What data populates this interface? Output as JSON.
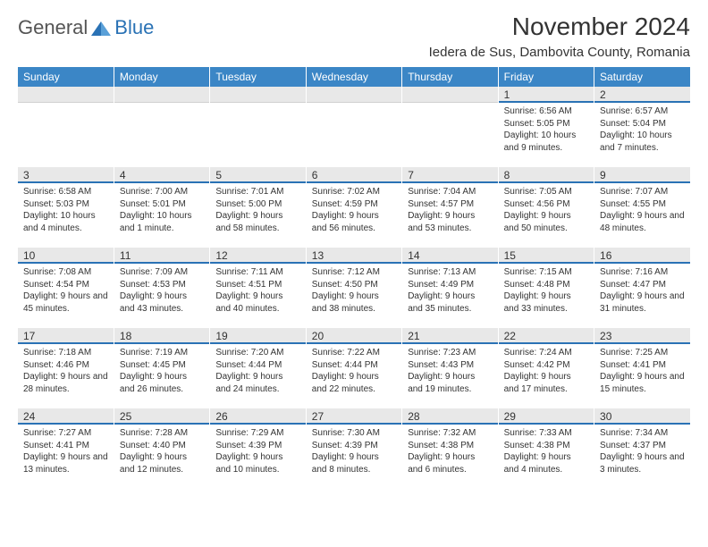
{
  "logo": {
    "general": "General",
    "blue": "Blue"
  },
  "title": "November 2024",
  "location": "Iedera de Sus, Dambovita County, Romania",
  "colors": {
    "header_bg": "#3b86c6",
    "header_text": "#ffffff",
    "num_bg": "#e8e8e8",
    "accent_line": "#2a72b5",
    "body_text": "#333333",
    "page_bg": "#ffffff"
  },
  "typography": {
    "title_fontsize": 28,
    "location_fontsize": 15,
    "weekday_fontsize": 12,
    "daynum_fontsize": 12,
    "cell_fontsize": 10
  },
  "weekdays": [
    "Sunday",
    "Monday",
    "Tuesday",
    "Wednesday",
    "Thursday",
    "Friday",
    "Saturday"
  ],
  "weeks": [
    [
      null,
      null,
      null,
      null,
      null,
      {
        "n": "1",
        "sunrise": "Sunrise: 6:56 AM",
        "sunset": "Sunset: 5:05 PM",
        "daylight": "Daylight: 10 hours and 9 minutes."
      },
      {
        "n": "2",
        "sunrise": "Sunrise: 6:57 AM",
        "sunset": "Sunset: 5:04 PM",
        "daylight": "Daylight: 10 hours and 7 minutes."
      }
    ],
    [
      {
        "n": "3",
        "sunrise": "Sunrise: 6:58 AM",
        "sunset": "Sunset: 5:03 PM",
        "daylight": "Daylight: 10 hours and 4 minutes."
      },
      {
        "n": "4",
        "sunrise": "Sunrise: 7:00 AM",
        "sunset": "Sunset: 5:01 PM",
        "daylight": "Daylight: 10 hours and 1 minute."
      },
      {
        "n": "5",
        "sunrise": "Sunrise: 7:01 AM",
        "sunset": "Sunset: 5:00 PM",
        "daylight": "Daylight: 9 hours and 58 minutes."
      },
      {
        "n": "6",
        "sunrise": "Sunrise: 7:02 AM",
        "sunset": "Sunset: 4:59 PM",
        "daylight": "Daylight: 9 hours and 56 minutes."
      },
      {
        "n": "7",
        "sunrise": "Sunrise: 7:04 AM",
        "sunset": "Sunset: 4:57 PM",
        "daylight": "Daylight: 9 hours and 53 minutes."
      },
      {
        "n": "8",
        "sunrise": "Sunrise: 7:05 AM",
        "sunset": "Sunset: 4:56 PM",
        "daylight": "Daylight: 9 hours and 50 minutes."
      },
      {
        "n": "9",
        "sunrise": "Sunrise: 7:07 AM",
        "sunset": "Sunset: 4:55 PM",
        "daylight": "Daylight: 9 hours and 48 minutes."
      }
    ],
    [
      {
        "n": "10",
        "sunrise": "Sunrise: 7:08 AM",
        "sunset": "Sunset: 4:54 PM",
        "daylight": "Daylight: 9 hours and 45 minutes."
      },
      {
        "n": "11",
        "sunrise": "Sunrise: 7:09 AM",
        "sunset": "Sunset: 4:53 PM",
        "daylight": "Daylight: 9 hours and 43 minutes."
      },
      {
        "n": "12",
        "sunrise": "Sunrise: 7:11 AM",
        "sunset": "Sunset: 4:51 PM",
        "daylight": "Daylight: 9 hours and 40 minutes."
      },
      {
        "n": "13",
        "sunrise": "Sunrise: 7:12 AM",
        "sunset": "Sunset: 4:50 PM",
        "daylight": "Daylight: 9 hours and 38 minutes."
      },
      {
        "n": "14",
        "sunrise": "Sunrise: 7:13 AM",
        "sunset": "Sunset: 4:49 PM",
        "daylight": "Daylight: 9 hours and 35 minutes."
      },
      {
        "n": "15",
        "sunrise": "Sunrise: 7:15 AM",
        "sunset": "Sunset: 4:48 PM",
        "daylight": "Daylight: 9 hours and 33 minutes."
      },
      {
        "n": "16",
        "sunrise": "Sunrise: 7:16 AM",
        "sunset": "Sunset: 4:47 PM",
        "daylight": "Daylight: 9 hours and 31 minutes."
      }
    ],
    [
      {
        "n": "17",
        "sunrise": "Sunrise: 7:18 AM",
        "sunset": "Sunset: 4:46 PM",
        "daylight": "Daylight: 9 hours and 28 minutes."
      },
      {
        "n": "18",
        "sunrise": "Sunrise: 7:19 AM",
        "sunset": "Sunset: 4:45 PM",
        "daylight": "Daylight: 9 hours and 26 minutes."
      },
      {
        "n": "19",
        "sunrise": "Sunrise: 7:20 AM",
        "sunset": "Sunset: 4:44 PM",
        "daylight": "Daylight: 9 hours and 24 minutes."
      },
      {
        "n": "20",
        "sunrise": "Sunrise: 7:22 AM",
        "sunset": "Sunset: 4:44 PM",
        "daylight": "Daylight: 9 hours and 22 minutes."
      },
      {
        "n": "21",
        "sunrise": "Sunrise: 7:23 AM",
        "sunset": "Sunset: 4:43 PM",
        "daylight": "Daylight: 9 hours and 19 minutes."
      },
      {
        "n": "22",
        "sunrise": "Sunrise: 7:24 AM",
        "sunset": "Sunset: 4:42 PM",
        "daylight": "Daylight: 9 hours and 17 minutes."
      },
      {
        "n": "23",
        "sunrise": "Sunrise: 7:25 AM",
        "sunset": "Sunset: 4:41 PM",
        "daylight": "Daylight: 9 hours and 15 minutes."
      }
    ],
    [
      {
        "n": "24",
        "sunrise": "Sunrise: 7:27 AM",
        "sunset": "Sunset: 4:41 PM",
        "daylight": "Daylight: 9 hours and 13 minutes."
      },
      {
        "n": "25",
        "sunrise": "Sunrise: 7:28 AM",
        "sunset": "Sunset: 4:40 PM",
        "daylight": "Daylight: 9 hours and 12 minutes."
      },
      {
        "n": "26",
        "sunrise": "Sunrise: 7:29 AM",
        "sunset": "Sunset: 4:39 PM",
        "daylight": "Daylight: 9 hours and 10 minutes."
      },
      {
        "n": "27",
        "sunrise": "Sunrise: 7:30 AM",
        "sunset": "Sunset: 4:39 PM",
        "daylight": "Daylight: 9 hours and 8 minutes."
      },
      {
        "n": "28",
        "sunrise": "Sunrise: 7:32 AM",
        "sunset": "Sunset: 4:38 PM",
        "daylight": "Daylight: 9 hours and 6 minutes."
      },
      {
        "n": "29",
        "sunrise": "Sunrise: 7:33 AM",
        "sunset": "Sunset: 4:38 PM",
        "daylight": "Daylight: 9 hours and 4 minutes."
      },
      {
        "n": "30",
        "sunrise": "Sunrise: 7:34 AM",
        "sunset": "Sunset: 4:37 PM",
        "daylight": "Daylight: 9 hours and 3 minutes."
      }
    ]
  ]
}
